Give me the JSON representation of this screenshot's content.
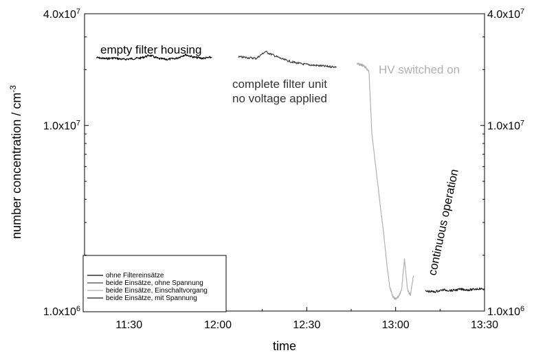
{
  "chart_data": {
    "type": "line",
    "xlabel": "time",
    "ylabel": "number concentration / cm",
    "ylabel_exponent": "-3",
    "x_unit": "minutes",
    "xlim": [
      675,
      810
    ],
    "ylim": [
      1000000,
      40000000
    ],
    "y_scale": "log",
    "x_ticks": [
      {
        "value": 690,
        "label": "11:30"
      },
      {
        "value": 720,
        "label": "12:00"
      },
      {
        "value": 750,
        "label": "12:30"
      },
      {
        "value": 780,
        "label": "13:00"
      },
      {
        "value": 810,
        "label": "13:30"
      }
    ],
    "y_ticks": [
      {
        "value": 1000000,
        "mantissa": "1.0x10",
        "exp": "6"
      },
      {
        "value": 10000000,
        "mantissa": "1.0x10",
        "exp": "7"
      },
      {
        "value": 40000000,
        "mantissa": "4.0x10",
        "exp": "7"
      }
    ],
    "right_axis_ticks": true,
    "grid": false,
    "legend_position": "bottom-left",
    "series": [
      {
        "name": "ohne Filtereinsätze",
        "color": "#000000",
        "x": [
          679,
          682,
          685,
          688,
          691,
          694,
          697,
          700,
          703,
          706,
          709,
          712,
          715,
          718
        ],
        "y": [
          23200000,
          22900000,
          23100000,
          22700000,
          22900000,
          23100000,
          23900000,
          22900000,
          22700000,
          23000000,
          24100000,
          23300000,
          23000000,
          23300000
        ]
      },
      {
        "name": "beide Einsätze, ohne Spannung",
        "color": "#404040",
        "x": [
          727,
          730,
          733,
          736,
          739,
          742,
          745,
          748,
          751,
          754,
          757,
          760
        ],
        "y": [
          23400000,
          23200000,
          23000000,
          25000000,
          23800000,
          22700000,
          22000000,
          21500000,
          21200000,
          21000000,
          20800000,
          20700000
        ]
      },
      {
        "name": "beide Einsätze, Einschaltvorgang",
        "color": "#b0b0b0",
        "x": [
          767,
          768,
          769,
          770,
          771,
          772,
          773,
          774,
          775,
          776,
          777,
          778,
          779,
          780,
          781,
          782,
          783,
          784,
          785,
          786
        ],
        "y": [
          21500000,
          21300000,
          21000000,
          20500000,
          19500000,
          9000000,
          6500000,
          4800000,
          3500000,
          2600000,
          1800000,
          1350000,
          1200000,
          1160000,
          1200000,
          1300000,
          1900000,
          1300000,
          1220000,
          1550000
        ]
      },
      {
        "name": "beide Einsätze, mit Spannung",
        "color": "#1a1a1a",
        "x": [
          790,
          793,
          796,
          799,
          802,
          805,
          808,
          811,
          814,
          817
        ],
        "y": [
          1280000,
          1270000,
          1300000,
          1290000,
          1310000,
          1300000,
          1320000,
          1310000,
          1330000,
          1340000
        ]
      }
    ],
    "annotations": [
      {
        "text": "empty filter housing",
        "color": "#000000"
      },
      {
        "text": "complete filter unit",
        "color": "#333333"
      },
      {
        "text": "no voltage applied",
        "color": "#333333"
      },
      {
        "text": "HV switched on",
        "color": "#b0b0b0"
      },
      {
        "text": "continuous operation",
        "color": "#000000"
      }
    ]
  }
}
